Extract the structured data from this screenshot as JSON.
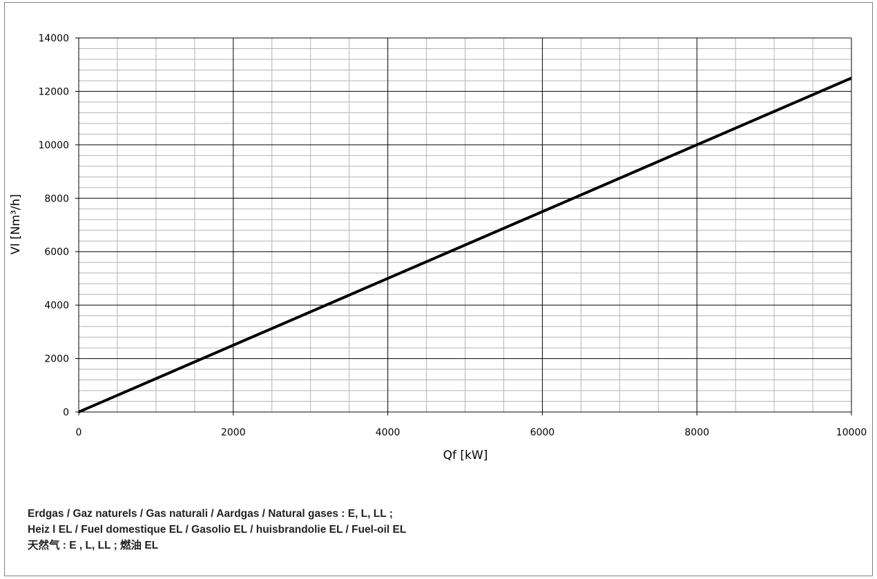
{
  "chart_data": {
    "type": "line",
    "xlabel": "Qf [kW]",
    "ylabel": "Vl [Nm³/h]",
    "xlim": [
      0,
      10000
    ],
    "ylim": [
      0,
      14000
    ],
    "x_major_ticks": [
      0,
      2000,
      4000,
      6000,
      8000,
      10000
    ],
    "y_major_ticks": [
      0,
      2000,
      4000,
      6000,
      8000,
      10000,
      12000,
      14000
    ],
    "x_tick_labels": [
      "0",
      "2000",
      "4000",
      "6000",
      "8000",
      "10000"
    ],
    "y_tick_labels": [
      "0",
      "2000",
      "4000",
      "6000",
      "8000",
      "10000",
      "12000",
      "14000"
    ],
    "x_minor_step": 500,
    "y_minor_step": 400,
    "grid": true,
    "series": [
      {
        "x": [
          0,
          10000
        ],
        "y": [
          0,
          12500
        ],
        "color": "#000000"
      }
    ]
  },
  "notes": {
    "lines": [
      "Erdgas / Gaz naturels / Gas naturali / Aardgas / Natural gases : E, L, LL ;",
      "Heiz  l EL / Fuel domestique EL / Gasolio EL / huisbrandolie EL / Fuel-oil EL",
      "天然气 : E , L, LL ; 燃油 EL"
    ]
  }
}
